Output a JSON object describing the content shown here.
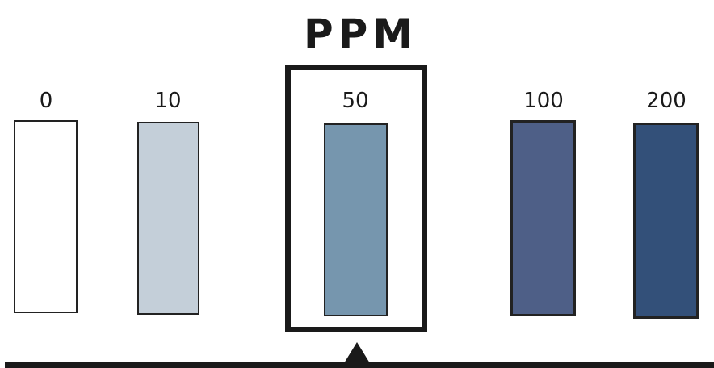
{
  "scale": {
    "title": "PPM",
    "selected_label": "50",
    "levels": [
      {
        "label": "0",
        "color": "#ffffff"
      },
      {
        "label": "10",
        "color": "#c4cfd9"
      },
      {
        "label": "50",
        "color": "#7696ae"
      },
      {
        "label": "100",
        "color": "#4e5f87"
      },
      {
        "label": "200",
        "color": "#335079"
      }
    ]
  }
}
